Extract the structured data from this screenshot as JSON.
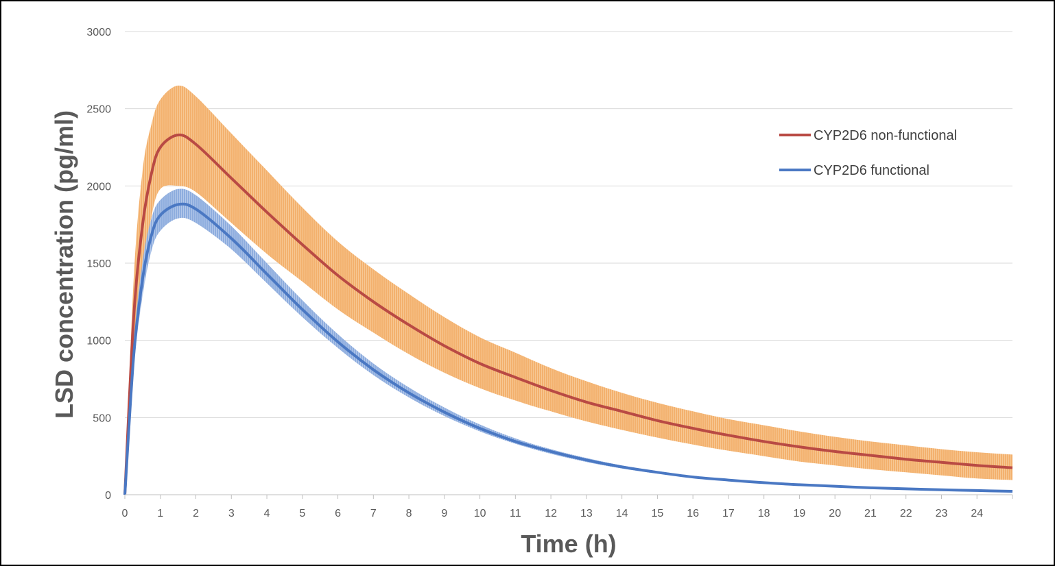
{
  "chart_data": {
    "type": "line",
    "title": "",
    "xlabel": "Time (h)",
    "ylabel": "LSD concentration (pg/ml)",
    "xlim": [
      0,
      25
    ],
    "ylim": [
      0,
      3000
    ],
    "x_ticks": [
      "0",
      "1",
      "2",
      "3",
      "4",
      "5",
      "6",
      "7",
      "8",
      "9",
      "10",
      "11",
      "12",
      "13",
      "14",
      "15",
      "16",
      "17",
      "18",
      "19",
      "20",
      "21",
      "22",
      "23",
      "24"
    ],
    "y_ticks": [
      "0",
      "500",
      "1000",
      "1500",
      "2000",
      "2500",
      "3000"
    ],
    "grid": "horizontal",
    "legend_position": "top-right",
    "series": [
      {
        "name": "CYP2D6 non-functional",
        "color": "#b94a44",
        "band_color": "#f3b16e",
        "x": [
          0,
          0.25,
          0.5,
          0.75,
          1,
          1.5,
          2,
          3,
          4,
          5,
          6,
          7,
          8,
          9,
          10,
          11,
          12,
          13,
          14,
          15,
          16,
          17,
          18,
          19,
          20,
          21,
          22,
          23,
          24,
          25
        ],
        "y": [
          0,
          1150,
          1750,
          2080,
          2250,
          2330,
          2270,
          2050,
          1830,
          1620,
          1420,
          1250,
          1100,
          965,
          850,
          760,
          675,
          600,
          540,
          480,
          430,
          385,
          345,
          310,
          280,
          255,
          230,
          210,
          190,
          175
        ],
        "lower": [
          0,
          900,
          1400,
          1800,
          1980,
          2000,
          1960,
          1760,
          1560,
          1380,
          1200,
          1050,
          910,
          790,
          690,
          610,
          540,
          475,
          420,
          370,
          325,
          285,
          250,
          215,
          190,
          165,
          145,
          125,
          105,
          95
        ],
        "upper": [
          0,
          1400,
          2100,
          2400,
          2560,
          2650,
          2580,
          2340,
          2100,
          1860,
          1640,
          1460,
          1300,
          1150,
          1020,
          920,
          820,
          735,
          660,
          595,
          540,
          490,
          450,
          410,
          375,
          345,
          320,
          295,
          275,
          260
        ]
      },
      {
        "name": "CYP2D6 functional",
        "color": "#4a78c3",
        "band_color": "#9bb6e3",
        "x": [
          0,
          0.25,
          0.5,
          0.75,
          1,
          1.5,
          2,
          3,
          4,
          5,
          6,
          7,
          8,
          9,
          10,
          11,
          12,
          13,
          14,
          15,
          16,
          17,
          18,
          19,
          20,
          21,
          22,
          23,
          24,
          25
        ],
        "y": [
          0,
          900,
          1400,
          1680,
          1810,
          1880,
          1850,
          1660,
          1430,
          1200,
          990,
          810,
          660,
          535,
          430,
          345,
          280,
          225,
          180,
          145,
          115,
          95,
          78,
          65,
          55,
          45,
          38,
          32,
          27,
          22
        ],
        "lower": [
          0,
          820,
          1290,
          1580,
          1710,
          1790,
          1760,
          1590,
          1370,
          1150,
          950,
          775,
          630,
          510,
          410,
          330,
          265,
          212,
          170,
          137,
          110,
          90,
          74,
          62,
          52,
          43,
          36,
          30,
          25,
          20
        ],
        "upper": [
          0,
          980,
          1510,
          1790,
          1910,
          1980,
          1940,
          1740,
          1500,
          1260,
          1040,
          850,
          695,
          565,
          455,
          365,
          295,
          238,
          190,
          153,
          122,
          100,
          82,
          68,
          58,
          48,
          40,
          34,
          29,
          24
        ]
      }
    ]
  }
}
